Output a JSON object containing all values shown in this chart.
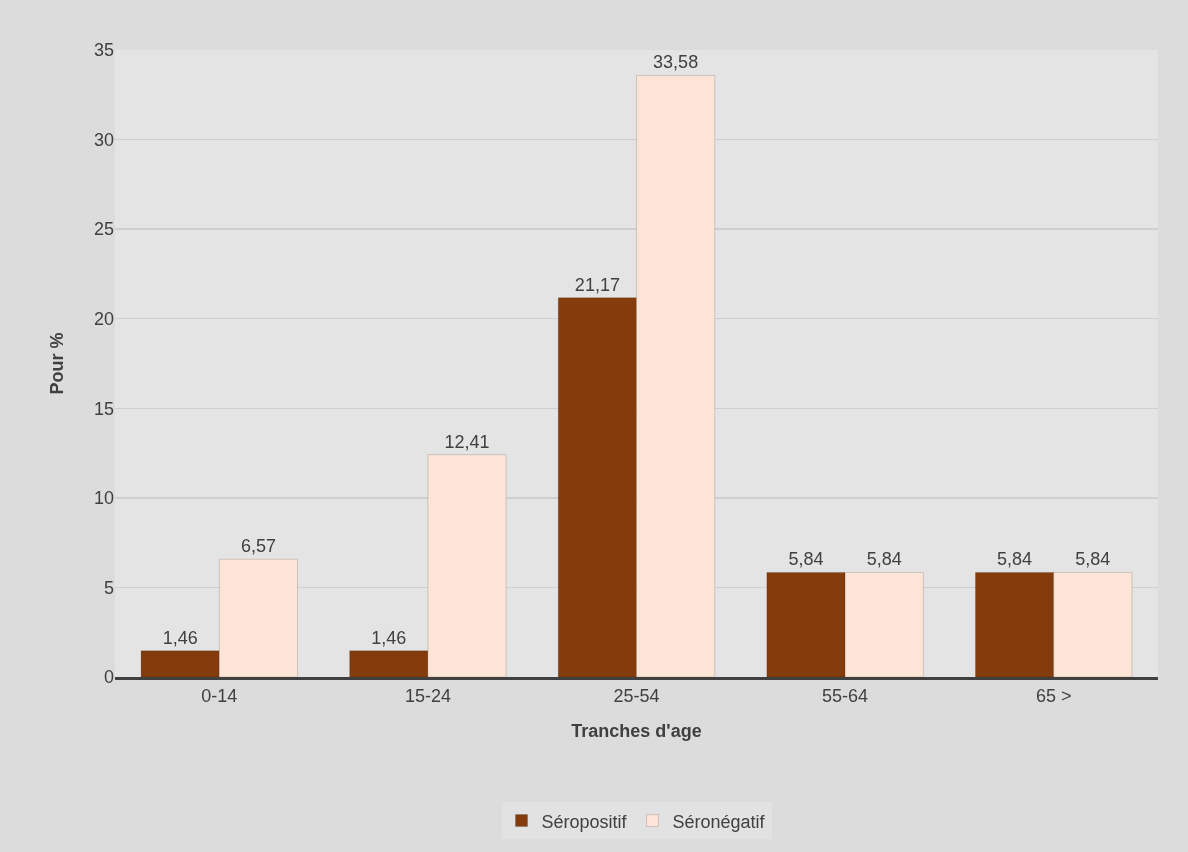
{
  "chart_data": {
    "type": "bar",
    "xlabel": "Tranches d'age",
    "ylabel": "Pour %",
    "categories": [
      "0-14",
      "15-24",
      "25-54",
      "55-64",
      "65 >"
    ],
    "series": [
      {
        "name": "Séropositif",
        "color": "#843c0c",
        "values": [
          1.46,
          1.46,
          21.17,
          5.84,
          5.84
        ],
        "value_labels": [
          "1,46",
          "1,46",
          "21,17",
          "5,84",
          "5,84"
        ]
      },
      {
        "name": "Séronégatif",
        "color": "#fce4d6",
        "values": [
          6.57,
          12.41,
          33.58,
          5.84,
          5.84
        ],
        "value_labels": [
          "6,57",
          "12,41",
          "33,58",
          "5,84",
          "5,84"
        ]
      }
    ],
    "ylim": [
      0,
      35
    ],
    "yticks": [
      0,
      5,
      10,
      15,
      20,
      25,
      30,
      35
    ],
    "grid": "y",
    "legend": "bottom"
  }
}
